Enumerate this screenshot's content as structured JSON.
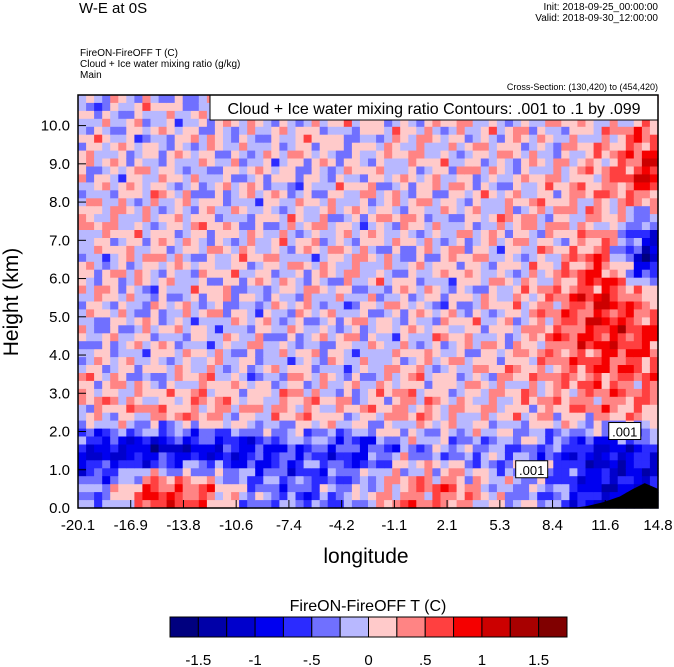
{
  "header": {
    "title": "W-E at 0S",
    "init": "Init: 2018-09-25_00:00:00",
    "valid": "Valid: 2018-09-30_12:00:00",
    "subtitles": [
      "FireON-FireOFF T   (C)",
      "Cloud + Ice water mixing ratio   (g/kg)",
      "Main"
    ],
    "cross_section": "Cross-Section: (130,420) to (454,420)"
  },
  "chart_data": {
    "type": "heatmap",
    "title": "Cloud + Ice water mixing ratio Contours: .001 to .1 by .099",
    "xlabel": "longitude",
    "ylabel": "Height (km)",
    "xlim": [
      -20.1,
      14.8
    ],
    "ylim": [
      0,
      10.8
    ],
    "xticks": [
      "-20.1",
      "-16.9",
      "-13.8",
      "-10.6",
      "-7.4",
      "-4.2",
      "-1.1",
      "2.1",
      "5.3",
      "8.4",
      "11.6",
      "14.8"
    ],
    "yticks": [
      "0.0",
      "1.0",
      "2.0",
      "3.0",
      "4.0",
      "5.0",
      "6.0",
      "7.0",
      "8.0",
      "9.0",
      "10.0"
    ],
    "grid_x": [
      -18.5,
      -15.5,
      -12.5,
      -9.5,
      -6.5,
      -3.5,
      -0.5,
      2.5,
      5.5,
      8.5,
      11.5,
      14.0
    ],
    "grid_y": [
      0.5,
      1.5,
      2.5,
      3.5,
      4.5,
      5.5,
      6.5,
      7.5,
      8.5,
      9.5,
      10.5
    ],
    "values": [
      [
        -0.3,
        0.8,
        0.5,
        -0.3,
        -0.5,
        -0.2,
        0.4,
        0.5,
        -0.2,
        -0.3,
        -1.0,
        -1.0
      ],
      [
        -1.0,
        -1.2,
        -1.0,
        -0.9,
        -0.5,
        -0.8,
        -0.3,
        -0.4,
        -0.3,
        -0.5,
        -1.1,
        -0.8
      ],
      [
        0.2,
        0.3,
        0.4,
        0.2,
        0.3,
        0.1,
        0.3,
        0.2,
        0.1,
        0.2,
        0.4,
        0.3
      ],
      [
        0.1,
        -0.2,
        0.2,
        -0.2,
        0.1,
        -0.2,
        0.2,
        -0.1,
        0.2,
        0.3,
        0.6,
        0.5
      ],
      [
        -0.2,
        0.1,
        -0.2,
        0.1,
        -0.2,
        0.1,
        -0.1,
        0.2,
        -0.1,
        0.4,
        0.8,
        0.7
      ],
      [
        0.1,
        -0.2,
        0.1,
        -0.2,
        0.1,
        -0.2,
        0.1,
        -0.2,
        0.1,
        0.3,
        0.9,
        0.3
      ],
      [
        -0.1,
        0.2,
        -0.1,
        0.2,
        -0.1,
        0.2,
        -0.2,
        0.2,
        -0.1,
        0.1,
        0.6,
        -1.2
      ],
      [
        0.2,
        -0.1,
        0.2,
        -0.2,
        0.2,
        -0.1,
        0.2,
        -0.2,
        0.2,
        0.1,
        0.2,
        -0.4
      ],
      [
        -0.1,
        0.2,
        -0.2,
        0.1,
        -0.2,
        0.1,
        -0.1,
        0.2,
        -0.1,
        0.2,
        0.3,
        0.9
      ],
      [
        0.1,
        -0.2,
        0.1,
        -0.2,
        0.2,
        -0.2,
        0.2,
        -0.1,
        0.2,
        -0.1,
        0.2,
        0.6
      ],
      [
        -0.2,
        0.1,
        -0.2,
        0.2,
        -0.1,
        0.2,
        -0.1,
        0.2,
        -0.1,
        0.2,
        -0.1,
        0.2
      ]
    ],
    "contour_labels": [
      ".001",
      ".001"
    ],
    "colorbar": {
      "title": "FireON-FireOFF T  (C)",
      "levels": [
        -1.5,
        -1.25,
        -1,
        -0.75,
        -0.5,
        -0.25,
        0,
        0.25,
        0.5,
        0.75,
        1,
        1.25,
        1.5
      ],
      "labels": [
        "-1.5",
        "-1",
        "-.5",
        "0",
        ".5",
        "1",
        "1.5"
      ],
      "colors": [
        "#00007f",
        "#0000a8",
        "#0000cc",
        "#0000f0",
        "#2b2bff",
        "#7070ff",
        "#b8b8ff",
        "#ffcaca",
        "#ff8484",
        "#ff4040",
        "#f50000",
        "#cc0000",
        "#a80000",
        "#800000"
      ]
    }
  }
}
